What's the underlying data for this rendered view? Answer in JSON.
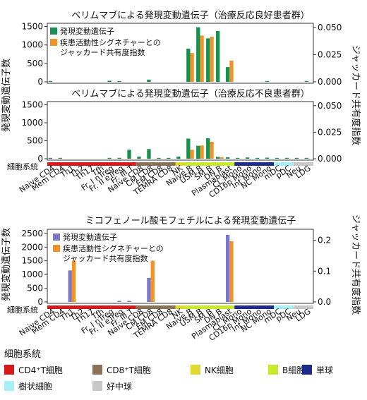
{
  "ylabel_left_top": "発現変動遺伝子数",
  "ylabel_right_top": "ジャッカード共有度指数",
  "ylabel_left_bottom": "発現変動遺伝子数",
  "ylabel_right_bottom": "ジャッカード共有度指数",
  "cell_lineage_row_label": "細胞系統",
  "bottom_legend": {
    "title": "細胞系統",
    "items": [
      {
        "label": "CD4⁺T細胞",
        "color": "#d7191c"
      },
      {
        "label": "CD8⁺T細胞",
        "color": "#8c7158"
      },
      {
        "label": "NK細胞",
        "color": "#e2d630"
      },
      {
        "label": "B細胞",
        "color": "#c8ea2c"
      },
      {
        "label": "単球",
        "color": "#1c2a8c"
      },
      {
        "label": "樹状細胞",
        "color": "#a6f0f5"
      },
      {
        "label": "好中球",
        "color": "#c8c8c8"
      }
    ]
  },
  "chart_data": [
    {
      "type": "bar",
      "title": "ベリムマブによる発現変動遺伝子（治療反応良好患者群）",
      "categories": [
        "Naive CD4",
        "Mem CD4",
        "Th1",
        "Th2",
        "Th17",
        "Tfh",
        "Fr. I nTreg",
        "Fr. II eTreg",
        "Fr. III T",
        "Naive CD8",
        "CM CD8",
        "EM CD8",
        "TEMRA CD8",
        "NK",
        "Naive B",
        "USM B",
        "SM B",
        "DN B",
        "Plasmablast",
        "CL Mono",
        "CD16p Mono",
        "Int Mono",
        "NC Mono",
        "mDC",
        "pDC",
        "Neu",
        "LDG"
      ],
      "series": [
        {
          "name": "発現変動遺伝子",
          "axis": "left",
          "color": "#1a8f4f",
          "values": [
            5,
            0,
            0,
            0,
            0,
            0,
            30,
            10,
            0,
            0,
            60,
            0,
            0,
            0,
            900,
            1480,
            1180,
            1380,
            400,
            0,
            0,
            0,
            5,
            0,
            0,
            0,
            10
          ]
        },
        {
          "name": "疾患活動性シグネチャーとのジャッカード共有度指数",
          "axis": "right",
          "color": "#f0932b",
          "values": [
            0,
            0,
            0,
            0,
            0,
            0,
            0,
            0,
            0,
            0,
            0,
            0,
            0,
            0,
            0.0265,
            0.0425,
            0.0415,
            0.0,
            0.0195,
            0,
            0,
            0,
            0,
            0,
            0,
            0,
            0
          ]
        }
      ],
      "ylim_left": [
        0,
        1550
      ],
      "yticks_left": [
        0,
        500,
        1000,
        1500
      ],
      "ylim_right": [
        0,
        0.0525
      ],
      "yticks_right": [
        "0.000",
        "0.025",
        "0.050"
      ],
      "legend": "top-left"
    },
    {
      "type": "bar",
      "title": "ベリムマブによる発現変動遺伝子（治療反応不良患者群）",
      "categories": [
        "Naive CD4",
        "Mem CD4",
        "Th1",
        "Th2",
        "Th17",
        "Tfh",
        "Fr. I nTreg",
        "Fr. II eTreg",
        "Fr. III T",
        "Naive CD8",
        "CM CD8",
        "EM CD8",
        "TEMRA CD8",
        "NK",
        "Naive B",
        "USM B",
        "SM B",
        "DN B",
        "Plasmablast",
        "CL Mono",
        "CD16p Mono",
        "Int Mono",
        "NC Mono",
        "mDC",
        "pDC",
        "Neu",
        "LDG"
      ],
      "series": [
        {
          "name": "発現変動遺伝子",
          "axis": "left",
          "color": "#1a8f4f",
          "values": [
            15,
            20,
            0,
            0,
            0,
            0,
            5,
            25,
            250,
            60,
            270,
            10,
            5,
            60,
            560,
            360,
            570,
            50,
            40,
            15,
            35,
            20,
            30,
            5,
            25,
            20,
            20
          ]
        },
        {
          "name": "疾患活動性シグネチャーとのジャッカード共有度指数",
          "axis": "right",
          "color": "#f0932b",
          "values": [
            0,
            0,
            0,
            0,
            0,
            0,
            0,
            0,
            0,
            0,
            0,
            0,
            0,
            0,
            0.0085,
            0.0125,
            0.016,
            0.0015,
            0,
            0,
            0,
            0,
            0,
            0,
            0,
            0,
            0
          ]
        }
      ],
      "ylim_left": [
        0,
        1550
      ],
      "yticks_left": [
        0,
        500,
        1000,
        1500
      ],
      "ylim_right": [
        0,
        0.0525
      ],
      "yticks_right": [
        "0.000",
        "0.025",
        "0.050"
      ]
    },
    {
      "type": "bar",
      "title": "ミコフェノール酸モフェチルによる発現変動遺伝子",
      "categories": [
        "Naive CD4",
        "Mem CD4",
        "Th1",
        "Th2",
        "Th17",
        "Tfh",
        "Fr. I nTreg",
        "Fr. II eTreg",
        "Fr. III T",
        "Naive CD8",
        "CM CD8",
        "EM CD8",
        "TEMRA CD8",
        "NK",
        "Naive B",
        "USM B",
        "SM B",
        "DN B",
        "Plasmablast",
        "CL Mono",
        "CD16p Mono",
        "Int Mono",
        "NC Mono",
        "mDC",
        "pDC",
        "Neu",
        "LDG"
      ],
      "series": [
        {
          "name": "発現変動遺伝子",
          "axis": "left",
          "color": "#7b78c9",
          "values": [
            0,
            0,
            1150,
            0,
            0,
            0,
            0,
            40,
            40,
            0,
            880,
            0,
            0,
            0,
            0,
            0,
            0,
            0,
            2450,
            0,
            0,
            0,
            0,
            0,
            0,
            0,
            0
          ]
        },
        {
          "name": "疾患活動性シグネチャーとのジャッカード共有度指数",
          "axis": "right",
          "color": "#f0932b",
          "values": [
            0,
            0,
            0.134,
            0,
            0,
            0,
            0,
            0,
            0,
            0,
            0.134,
            0,
            0,
            0,
            0,
            0,
            0,
            0,
            0.197,
            0,
            0,
            0,
            0,
            0,
            0,
            0,
            0
          ]
        }
      ],
      "ylim_left": [
        0,
        2600
      ],
      "yticks_left": [
        0,
        500,
        1000,
        1500,
        2000,
        2500
      ],
      "ylim_right": [
        0,
        0.2311
      ],
      "yticks_right": [
        "0.0",
        "0.1",
        "0.2"
      ],
      "legend": "top-left"
    }
  ]
}
